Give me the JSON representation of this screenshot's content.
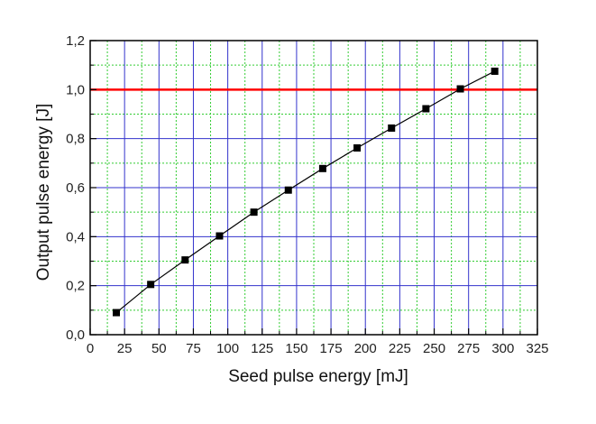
{
  "chart_data": {
    "type": "scatter",
    "title": "",
    "xlabel": "Seed pulse energy [mJ]",
    "ylabel": "Output pulse energy [J]",
    "xlim": [
      0,
      325
    ],
    "ylim": [
      0,
      1.2
    ],
    "x_ticks": [
      0,
      25,
      50,
      75,
      100,
      125,
      150,
      175,
      200,
      225,
      250,
      275,
      300,
      325
    ],
    "x_tick_labels": [
      "0",
      "25",
      "50",
      "75",
      "100",
      "125",
      "150",
      "175",
      "200",
      "225",
      "250",
      "275",
      "300",
      "325"
    ],
    "y_ticks": [
      0,
      0.2,
      0.4,
      0.6,
      0.8,
      1.0,
      1.2
    ],
    "y_tick_labels": [
      "0,0",
      "0,2",
      "0,4",
      "0,6",
      "0,8",
      "1,0",
      "1,2"
    ],
    "grid": true,
    "grid_major_color": "#3333cc",
    "grid_minor_color": "#33cc33",
    "legend": "none",
    "series": [
      {
        "marker": "square",
        "line": true,
        "color": "#000000",
        "x": [
          19,
          44,
          69,
          94,
          119,
          144,
          169,
          194,
          219,
          244,
          269,
          294
        ],
        "y": [
          0.09,
          0.205,
          0.305,
          0.403,
          0.5,
          0.59,
          0.678,
          0.762,
          0.843,
          0.922,
          1.003,
          1.075
        ]
      }
    ],
    "reference_lines": [
      {
        "axis": "y",
        "value": 1.0,
        "color": "#ff0000"
      }
    ]
  }
}
